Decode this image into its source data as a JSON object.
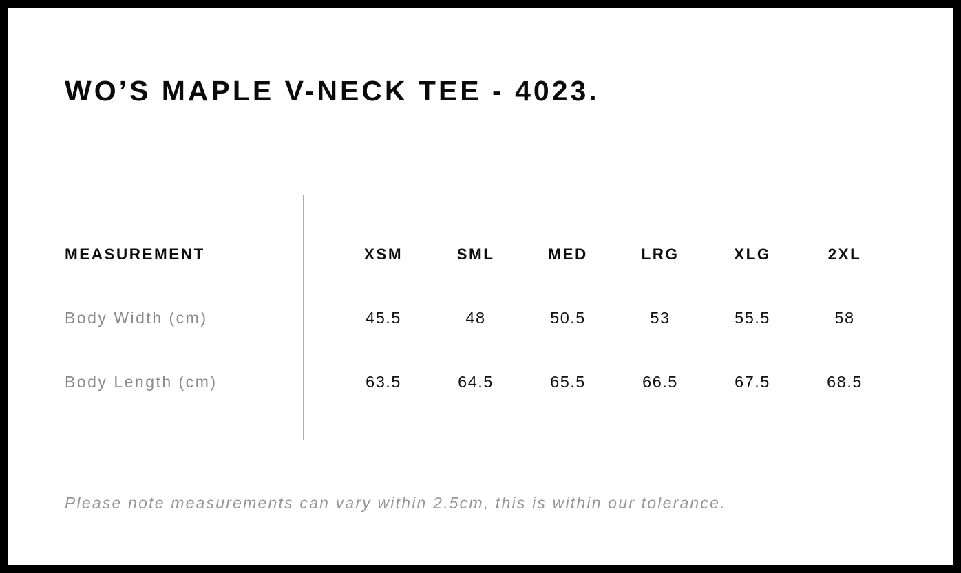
{
  "page": {
    "title": "WO’S MAPLE V-NECK TEE - 4023.",
    "footnote": "Please note measurements can vary within 2.5cm, this is within our tolerance."
  },
  "size_chart": {
    "measurement_header": "MEASUREMENT",
    "size_headers": [
      "XSM",
      "SML",
      "MED",
      "LRG",
      "XLG",
      "2XL"
    ],
    "rows": [
      {
        "label": "Body Width (cm)",
        "values": [
          "45.5",
          "48",
          "50.5",
          "53",
          "55.5",
          "58"
        ]
      },
      {
        "label": "Body Length (cm)",
        "values": [
          "63.5",
          "64.5",
          "65.5",
          "66.5",
          "67.5",
          "68.5"
        ]
      }
    ],
    "tolerance_cm": "2.5"
  },
  "colors": {
    "frame_border": "#000000",
    "background": "#ffffff",
    "heading_text": "#0a0a0a",
    "row_label_text": "#8a8a8a",
    "footnote_text": "#969696",
    "divider_line": "#ababab"
  }
}
